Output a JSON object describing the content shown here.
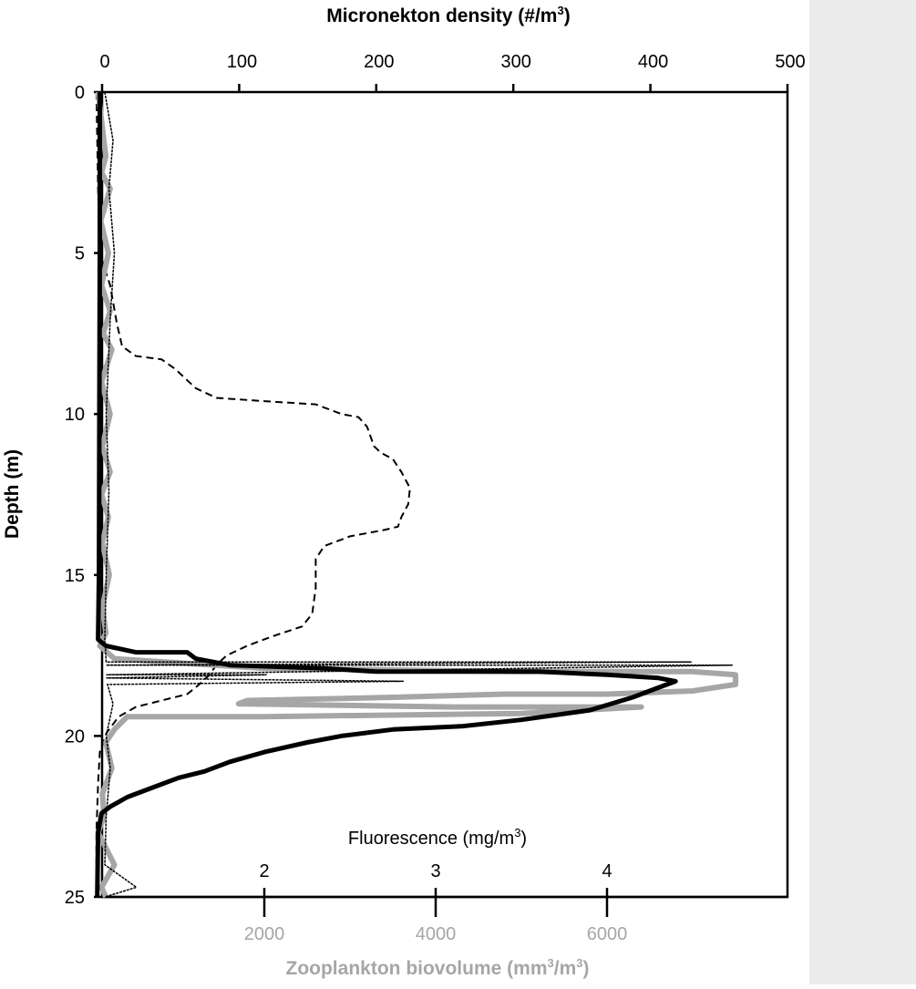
{
  "colors": {
    "background": "#ffffff",
    "side_panel": "#ececec",
    "black": "#000000",
    "gray": "#a6a6a6"
  },
  "chart_data": {
    "type": "line",
    "grid": false,
    "legend": "none",
    "y_axis": {
      "label": "Depth (m)",
      "range": [
        0,
        25
      ],
      "inverted": true,
      "ticks": [
        0,
        5,
        10,
        15,
        20,
        25
      ]
    },
    "x_axes": {
      "micronekton": {
        "label_main": "Micronekton density (#/m",
        "label_sup": "3",
        "label_end": ")",
        "position": "top",
        "range": [
          0,
          500
        ],
        "ticks": [
          0,
          100,
          200,
          300,
          400,
          500
        ]
      },
      "fluorescence": {
        "label_main": "Fluorescence (mg/m",
        "label_sup": "3",
        "label_end": ")",
        "position": "inside-bottom",
        "range": [
          1,
          5
        ],
        "ticks": [
          2,
          3,
          4
        ]
      },
      "zooplankton": {
        "label_main": "Zooplankton biovolume (mm",
        "label_sup": "3",
        "label_end": "/m",
        "label_sup2": "3",
        "label_end2": ")",
        "position": "bottom",
        "range": [
          0,
          8000
        ],
        "ticks": [
          2000,
          4000,
          6000
        ]
      }
    },
    "series": [
      {
        "axis": "fluorescence",
        "style": "dashed black",
        "points": [
          [
            1.02,
            0
          ],
          [
            1.03,
            3
          ],
          [
            1.04,
            5
          ],
          [
            1.1,
            6
          ],
          [
            1.14,
            7.2
          ],
          [
            1.17,
            7.9
          ],
          [
            1.25,
            8.2
          ],
          [
            1.4,
            8.3
          ],
          [
            1.48,
            8.6
          ],
          [
            1.6,
            9.2
          ],
          [
            1.72,
            9.5
          ],
          [
            2.0,
            9.6
          ],
          [
            2.3,
            9.7
          ],
          [
            2.45,
            10.0
          ],
          [
            2.55,
            10.1
          ],
          [
            2.6,
            10.4
          ],
          [
            2.64,
            11.0
          ],
          [
            2.68,
            11.2
          ],
          [
            2.75,
            11.4
          ],
          [
            2.8,
            11.8
          ],
          [
            2.85,
            12.3
          ],
          [
            2.84,
            12.8
          ],
          [
            2.8,
            13.2
          ],
          [
            2.78,
            13.5
          ],
          [
            2.7,
            13.6
          ],
          [
            2.5,
            13.8
          ],
          [
            2.35,
            14.1
          ],
          [
            2.3,
            14.5
          ],
          [
            2.3,
            15.4
          ],
          [
            2.28,
            16.2
          ],
          [
            2.22,
            16.6
          ],
          [
            2.05,
            16.9
          ],
          [
            1.9,
            17.2
          ],
          [
            1.78,
            17.5
          ],
          [
            1.72,
            17.8
          ],
          [
            1.68,
            18.1
          ],
          [
            1.62,
            18.4
          ],
          [
            1.55,
            18.7
          ],
          [
            1.4,
            18.9
          ],
          [
            1.25,
            19.1
          ],
          [
            1.15,
            19.4
          ],
          [
            1.08,
            19.9
          ],
          [
            1.04,
            20.5
          ],
          [
            1.03,
            21.5
          ],
          [
            1.02,
            23
          ],
          [
            1.02,
            25
          ]
        ]
      },
      {
        "axis": "zooplankton",
        "style": "thick black",
        "points": [
          [
            80,
            0
          ],
          [
            80,
            5
          ],
          [
            75,
            10
          ],
          [
            70,
            15
          ],
          [
            60,
            17
          ],
          [
            150,
            17.2
          ],
          [
            500,
            17.4
          ],
          [
            1100,
            17.4
          ],
          [
            1200,
            17.6
          ],
          [
            1600,
            17.8
          ],
          [
            2700,
            17.9
          ],
          [
            3300,
            18.0
          ],
          [
            4000,
            18.0
          ],
          [
            5200,
            18.0
          ],
          [
            6000,
            18.1
          ],
          [
            6600,
            18.2
          ],
          [
            6800,
            18.3
          ],
          [
            6700,
            18.4
          ],
          [
            6600,
            18.5
          ],
          [
            6300,
            18.8
          ],
          [
            5800,
            19.2
          ],
          [
            5000,
            19.5
          ],
          [
            4300,
            19.7
          ],
          [
            3500,
            19.8
          ],
          [
            2900,
            20.0
          ],
          [
            2500,
            20.2
          ],
          [
            2000,
            20.5
          ],
          [
            1600,
            20.8
          ],
          [
            1300,
            21.1
          ],
          [
            1000,
            21.3
          ],
          [
            700,
            21.6
          ],
          [
            400,
            21.9
          ],
          [
            200,
            22.2
          ],
          [
            100,
            22.4
          ],
          [
            60,
            23
          ],
          [
            50,
            25
          ]
        ]
      },
      {
        "axis": "zooplankton",
        "style": "thick gray",
        "points": [
          [
            60,
            0
          ],
          [
            150,
            2
          ],
          [
            100,
            2.5
          ],
          [
            200,
            3
          ],
          [
            90,
            4
          ],
          [
            180,
            5
          ],
          [
            100,
            6
          ],
          [
            200,
            6.8
          ],
          [
            120,
            7.5
          ],
          [
            220,
            8
          ],
          [
            100,
            9
          ],
          [
            200,
            10
          ],
          [
            110,
            11
          ],
          [
            200,
            11.8
          ],
          [
            100,
            12.5
          ],
          [
            180,
            13.2
          ],
          [
            110,
            14
          ],
          [
            190,
            15
          ],
          [
            110,
            16
          ],
          [
            150,
            16.8
          ],
          [
            80,
            17.2
          ],
          [
            250,
            17.6
          ],
          [
            2000,
            17.9
          ],
          [
            5000,
            18.0
          ],
          [
            7000,
            18.0
          ],
          [
            7500,
            18.1
          ],
          [
            7500,
            18.4
          ],
          [
            7000,
            18.6
          ],
          [
            6000,
            18.7
          ],
          [
            4800,
            18.7
          ],
          [
            3500,
            18.8
          ],
          [
            1800,
            18.9
          ],
          [
            1700,
            19.0
          ],
          [
            4200,
            19.1
          ],
          [
            6400,
            19.1
          ],
          [
            5000,
            19.3
          ],
          [
            2000,
            19.4
          ],
          [
            400,
            19.4
          ],
          [
            250,
            19.8
          ],
          [
            150,
            20.2
          ],
          [
            220,
            21
          ],
          [
            110,
            21.8
          ],
          [
            130,
            22.5
          ],
          [
            60,
            23
          ],
          [
            250,
            24
          ],
          [
            100,
            24.7
          ],
          [
            150,
            25
          ]
        ]
      },
      {
        "axis": "micronekton",
        "style": "thin black",
        "points": [
          [
            2,
            0
          ],
          [
            8,
            1.5
          ],
          [
            5,
            3
          ],
          [
            9,
            5
          ],
          [
            6,
            7
          ],
          [
            3,
            10
          ],
          [
            5,
            12.4
          ],
          [
            3,
            15
          ],
          [
            2,
            17
          ],
          [
            3,
            17.7
          ],
          [
            430,
            17.7
          ],
          [
            3,
            17.8
          ],
          [
            460,
            17.8
          ],
          [
            3,
            18.1
          ],
          [
            120,
            18.1
          ],
          [
            3,
            18.2
          ],
          [
            220,
            18.3
          ],
          [
            4,
            18.4
          ],
          [
            8,
            19.0
          ],
          [
            3,
            20
          ],
          [
            6,
            21
          ],
          [
            3,
            22.5
          ],
          [
            2,
            24
          ],
          [
            25,
            24.7
          ],
          [
            2,
            25
          ]
        ]
      }
    ]
  }
}
